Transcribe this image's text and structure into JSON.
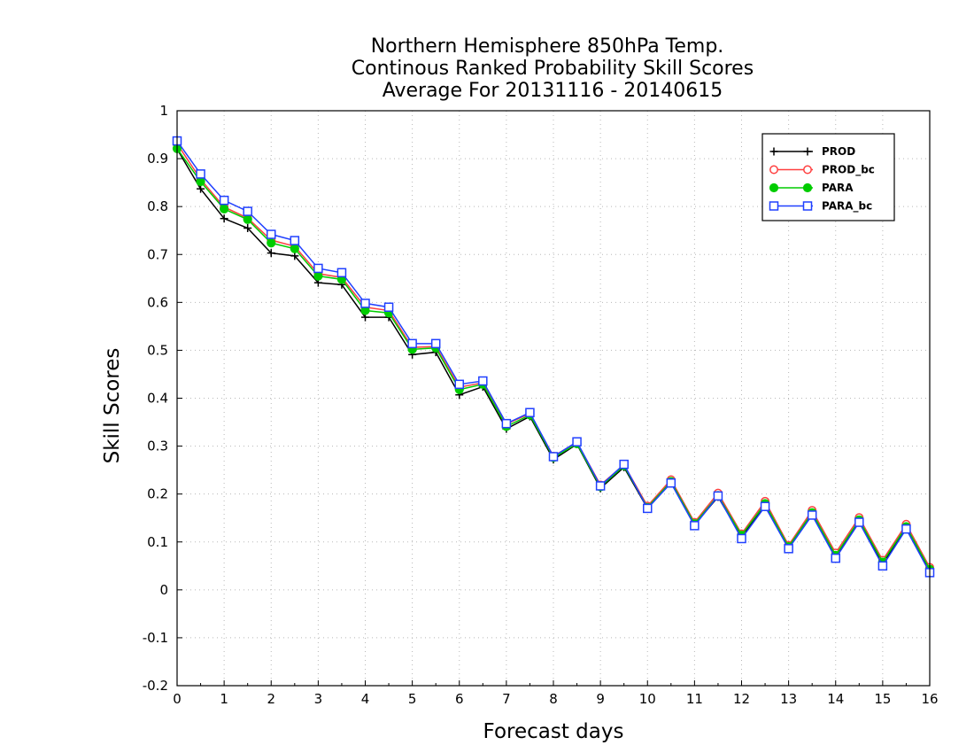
{
  "chart_data": {
    "type": "line",
    "title_lines": [
      "Northern Hemisphere 850hPa Temp.",
      "Continous Ranked Probability Skill Scores",
      "Average For 20131116 - 20140615"
    ],
    "xlabel": "Forecast days",
    "ylabel": "Skill Scores",
    "xlim": [
      0,
      16
    ],
    "ylim": [
      -0.2,
      1
    ],
    "x_ticks": [
      0,
      1,
      2,
      3,
      4,
      5,
      6,
      7,
      8,
      9,
      10,
      11,
      12,
      13,
      14,
      15,
      16
    ],
    "y_ticks": [
      -0.2,
      -0.1,
      0,
      0.1,
      0.2,
      0.3,
      0.4,
      0.5,
      0.6,
      0.7,
      0.8,
      0.9,
      1
    ],
    "y_tick_labels": [
      "-0.2",
      "-0.1",
      "0",
      "0.1",
      "0.2",
      "0.3",
      "0.4",
      "0.5",
      "0.6",
      "0.7",
      "0.8",
      "0.9",
      "1"
    ],
    "grid": true,
    "legend_position": "top-right",
    "x": [
      0,
      0.5,
      1,
      1.5,
      2,
      2.5,
      3,
      3.5,
      4,
      4.5,
      5,
      5.5,
      6,
      6.5,
      7,
      7.5,
      8,
      8.5,
      9,
      9.5,
      10,
      10.5,
      11,
      11.5,
      12,
      12.5,
      13,
      13.5,
      14,
      14.5,
      15,
      15.5,
      16
    ],
    "series": [
      {
        "name": "PROD",
        "color": "#000000",
        "marker": "plus",
        "values": [
          0.92,
          0.837,
          0.775,
          0.755,
          0.703,
          0.697,
          0.641,
          0.637,
          0.569,
          0.569,
          0.491,
          0.496,
          0.407,
          0.424,
          0.336,
          0.362,
          0.272,
          0.304,
          0.212,
          0.256,
          0.17,
          0.224,
          0.136,
          0.194,
          0.111,
          0.175,
          0.087,
          0.158,
          0.069,
          0.144,
          0.054,
          0.13,
          0.04
        ]
      },
      {
        "name": "PROD_bc",
        "color": "#ff4040",
        "marker": "circle-open",
        "values": [
          0.931,
          0.857,
          0.799,
          0.776,
          0.73,
          0.717,
          0.66,
          0.652,
          0.59,
          0.583,
          0.506,
          0.508,
          0.423,
          0.432,
          0.346,
          0.368,
          0.279,
          0.308,
          0.219,
          0.261,
          0.175,
          0.23,
          0.141,
          0.202,
          0.117,
          0.185,
          0.093,
          0.166,
          0.077,
          0.151,
          0.062,
          0.137,
          0.047
        ]
      },
      {
        "name": "PARA",
        "color": "#00cc00",
        "marker": "circle-filled",
        "values": [
          0.921,
          0.852,
          0.795,
          0.773,
          0.724,
          0.712,
          0.655,
          0.648,
          0.583,
          0.578,
          0.502,
          0.505,
          0.418,
          0.429,
          0.341,
          0.365,
          0.276,
          0.305,
          0.215,
          0.259,
          0.172,
          0.226,
          0.138,
          0.197,
          0.114,
          0.18,
          0.09,
          0.161,
          0.072,
          0.146,
          0.058,
          0.132,
          0.043
        ]
      },
      {
        "name": "PARA_bc",
        "color": "#2040ff",
        "marker": "square-open",
        "values": [
          0.937,
          0.868,
          0.813,
          0.79,
          0.742,
          0.729,
          0.671,
          0.662,
          0.598,
          0.59,
          0.514,
          0.514,
          0.429,
          0.436,
          0.347,
          0.37,
          0.278,
          0.309,
          0.217,
          0.262,
          0.17,
          0.223,
          0.134,
          0.196,
          0.107,
          0.174,
          0.086,
          0.156,
          0.066,
          0.141,
          0.05,
          0.127,
          0.036
        ]
      }
    ]
  }
}
